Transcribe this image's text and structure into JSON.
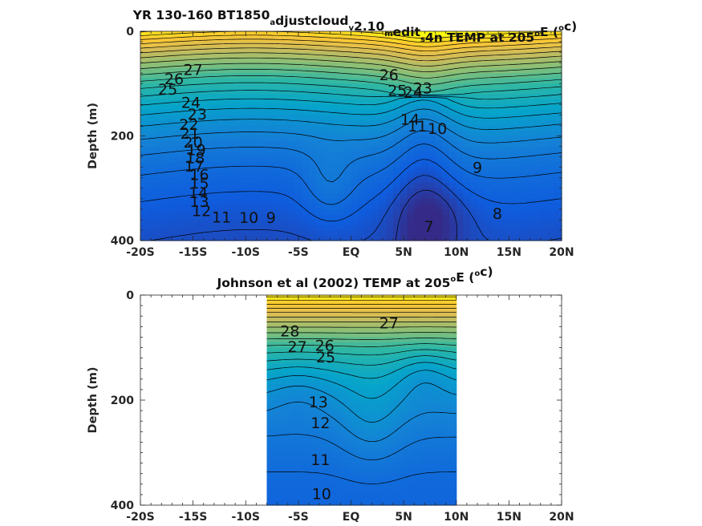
{
  "chart_data": [
    {
      "type": "contour",
      "title_parts": [
        "YR 130-160 BT1850",
        "a",
        "djustcloud",
        "v",
        "2.10",
        "m",
        "edit",
        "s",
        "4n TEMP at 205",
        "o",
        "E (",
        "o",
        "c)"
      ],
      "ylabel": "Depth (m)",
      "x_tick_labels": [
        "-20S",
        "-15S",
        "-10S",
        "-5S",
        "EQ",
        "5N",
        "10N",
        "15N",
        "20N"
      ],
      "x_ticks": [
        -20,
        -15,
        -10,
        -5,
        0,
        5,
        10,
        15,
        20
      ],
      "y_tick_labels": [
        "0",
        "200",
        "400"
      ],
      "y_ticks": [
        0,
        200,
        400
      ],
      "xlim": [
        -20,
        20
      ],
      "ylim": [
        0,
        400
      ],
      "y_reversed": true,
      "data_extent": [
        -20,
        20
      ],
      "contour_labels": [
        {
          "text": "27",
          "lat": -15.0,
          "depth": 75
        },
        {
          "text": "26",
          "lat": -16.8,
          "depth": 93
        },
        {
          "text": "25",
          "lat": -17.4,
          "depth": 113
        },
        {
          "text": "24",
          "lat": -15.2,
          "depth": 138
        },
        {
          "text": "23",
          "lat": -14.6,
          "depth": 160
        },
        {
          "text": "22",
          "lat": -15.4,
          "depth": 180
        },
        {
          "text": "21",
          "lat": -15.3,
          "depth": 197
        },
        {
          "text": "20",
          "lat": -15.0,
          "depth": 214
        },
        {
          "text": "19",
          "lat": -14.7,
          "depth": 228
        },
        {
          "text": "18",
          "lat": -14.8,
          "depth": 244
        },
        {
          "text": "17",
          "lat": -14.9,
          "depth": 260
        },
        {
          "text": "16",
          "lat": -14.4,
          "depth": 276
        },
        {
          "text": "15",
          "lat": -14.4,
          "depth": 292
        },
        {
          "text": "14",
          "lat": -14.5,
          "depth": 310
        },
        {
          "text": "13",
          "lat": -14.4,
          "depth": 327
        },
        {
          "text": "12",
          "lat": -14.2,
          "depth": 345
        },
        {
          "text": "11",
          "lat": -12.3,
          "depth": 357
        },
        {
          "text": "10",
          "lat": -9.7,
          "depth": 358
        },
        {
          "text": "9",
          "lat": -7.6,
          "depth": 358
        },
        {
          "text": "26",
          "lat": 3.6,
          "depth": 85
        },
        {
          "text": "25",
          "lat": 4.4,
          "depth": 115
        },
        {
          "text": "24",
          "lat": 5.9,
          "depth": 118
        },
        {
          "text": "23",
          "lat": 6.8,
          "depth": 110
        },
        {
          "text": "14",
          "lat": 5.6,
          "depth": 170
        },
        {
          "text": "11",
          "lat": 6.3,
          "depth": 183
        },
        {
          "text": "10",
          "lat": 8.2,
          "depth": 188
        },
        {
          "text": "9",
          "lat": 12.0,
          "depth": 262
        },
        {
          "text": "8",
          "lat": 13.9,
          "depth": 350
        },
        {
          "text": "7",
          "lat": 7.4,
          "depth": 375
        }
      ]
    },
    {
      "type": "contour",
      "title_parts": [
        "Johnson et al (2002) TEMP at 205",
        "o",
        "E (",
        "o",
        "c)"
      ],
      "ylabel": "Depth (m)",
      "x_tick_labels": [
        "-20S",
        "-15S",
        "-10S",
        "-5S",
        "EQ",
        "5N",
        "10N",
        "15N",
        "20N"
      ],
      "x_ticks": [
        -20,
        -15,
        -10,
        -5,
        0,
        5,
        10,
        15,
        20
      ],
      "y_tick_labels": [
        "0",
        "200",
        "400"
      ],
      "y_ticks": [
        0,
        200,
        400
      ],
      "xlim": [
        -20,
        20
      ],
      "ylim": [
        0,
        400
      ],
      "y_reversed": true,
      "data_extent": [
        -8,
        10
      ],
      "contour_labels": [
        {
          "text": "28",
          "lat": -5.8,
          "depth": 70
        },
        {
          "text": "27",
          "lat": 3.6,
          "depth": 55
        },
        {
          "text": "27",
          "lat": -5.1,
          "depth": 100
        },
        {
          "text": "26",
          "lat": -2.5,
          "depth": 98
        },
        {
          "text": "25",
          "lat": -2.4,
          "depth": 120
        },
        {
          "text": "13",
          "lat": -3.1,
          "depth": 205
        },
        {
          "text": "12",
          "lat": -2.9,
          "depth": 245
        },
        {
          "text": "11",
          "lat": -2.9,
          "depth": 315
        },
        {
          "text": "10",
          "lat": -2.8,
          "depth": 380
        }
      ]
    }
  ]
}
